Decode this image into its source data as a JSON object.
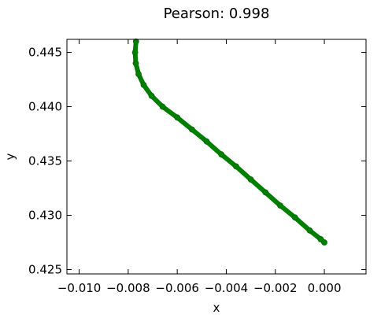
{
  "chart_data": {
    "type": "scatter",
    "title": "Pearson: 0.998",
    "xlabel": "x",
    "ylabel": "y",
    "xlim": [
      -0.0105,
      0.0017
    ],
    "ylim": [
      0.4246,
      0.4462
    ],
    "xticks": [
      -0.01,
      -0.008,
      -0.006,
      -0.004,
      -0.002,
      0.0
    ],
    "xtick_labels": [
      "−0.010",
      "−0.008",
      "−0.006",
      "−0.004",
      "−0.002",
      "0.000"
    ],
    "yticks": [
      0.425,
      0.43,
      0.435,
      0.44,
      0.445
    ],
    "ytick_labels": [
      "0.425",
      "0.430",
      "0.435",
      "0.440",
      "0.445"
    ],
    "grid": false,
    "series": [
      {
        "color": "#008000",
        "x": [
          -0.00768,
          -0.00772,
          -0.00769,
          -0.00758,
          -0.00737,
          -0.00705,
          -0.0066,
          -0.006,
          -0.0054,
          -0.0048,
          -0.0042,
          -0.0036,
          -0.003,
          -0.0024,
          -0.0018,
          -0.0012,
          -0.0006,
          -0.00015,
          0.0
        ],
        "y": [
          0.446,
          0.445,
          0.444,
          0.443,
          0.442,
          0.441,
          0.44,
          0.439,
          0.4379,
          0.4368,
          0.4356,
          0.4345,
          0.4333,
          0.4321,
          0.4309,
          0.4298,
          0.4286,
          0.4278,
          0.4275
        ]
      }
    ]
  }
}
